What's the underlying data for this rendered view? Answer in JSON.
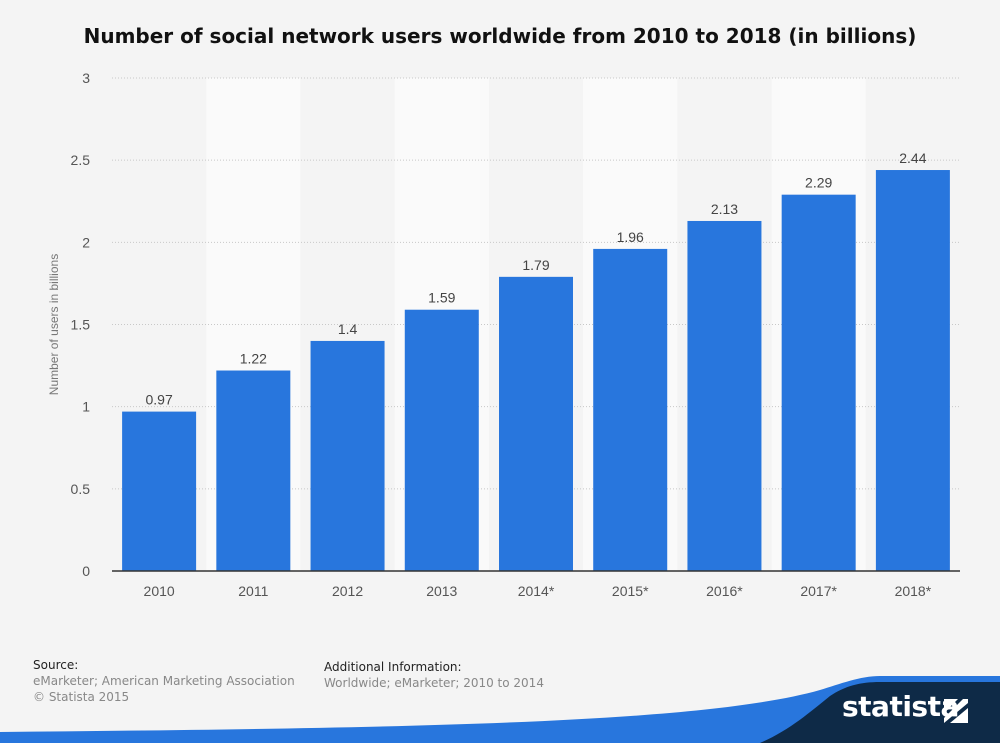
{
  "chart_data": {
    "type": "bar",
    "title": "Number of social network users worldwide from 2010 to 2018 (in billions)",
    "ylabel": "Number of users in billions",
    "xlabel": "",
    "categories": [
      "2010",
      "2011",
      "2012",
      "2013",
      "2014*",
      "2015*",
      "2016*",
      "2017*",
      "2018*"
    ],
    "values": [
      0.97,
      1.22,
      1.4,
      1.59,
      1.79,
      1.96,
      2.13,
      2.29,
      2.44
    ],
    "value_labels": [
      "0.97",
      "1.22",
      "1.4",
      "1.59",
      "1.79",
      "1.96",
      "2.13",
      "2.29",
      "2.44"
    ],
    "ylim": [
      0,
      3
    ],
    "yticks": [
      0,
      0.5,
      1,
      1.5,
      2,
      2.5,
      3
    ],
    "ytick_labels": [
      "0",
      "0.5",
      "1",
      "1.5",
      "2",
      "2.5",
      "3"
    ],
    "grid": "horizontal-dotted",
    "bar_color": "#2876dd",
    "colors": {
      "background": "#f4f4f4",
      "alt_band": "#fafafa",
      "bar": "#2876dd",
      "brand_dark": "#0e2a47",
      "brand_accent": "#2876dd"
    }
  },
  "footer": {
    "source_heading": "Source:",
    "source_lines": [
      "eMarketer; American Marketing Association",
      "© Statista 2015"
    ],
    "additional_heading": "Additional Information:",
    "additional_text": "Worldwide; eMarketer; 2010 to 2014"
  },
  "brand": {
    "name": "statista",
    "icon": "statista-logo-icon"
  }
}
